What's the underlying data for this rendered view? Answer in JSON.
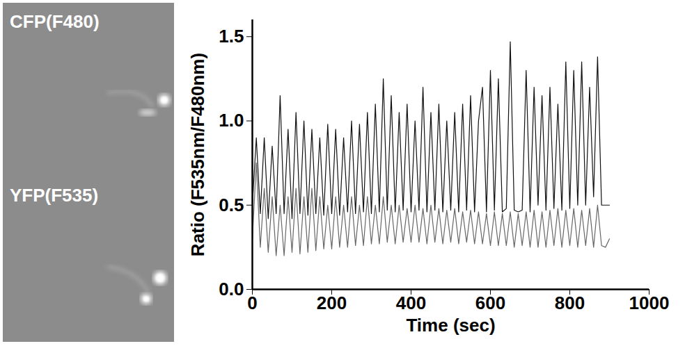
{
  "image_labels": [
    "CFP(F480)",
    "YFP(F535)"
  ],
  "chart_data": {
    "type": "line",
    "x_label": "Time (sec)",
    "y_label": "Ratio (F535nm/F480nm)",
    "xlim": [
      0,
      1000
    ],
    "xticks": [
      0,
      200,
      400,
      600,
      800,
      1000
    ],
    "ylim": [
      0,
      1.6
    ],
    "yticks": [
      {
        "value": 0,
        "label": "0.0"
      },
      {
        "value": 0.5,
        "label": "0.5"
      },
      {
        "value": 1,
        "label": "1.0"
      },
      {
        "value": 1.5,
        "label": "1.5"
      }
    ],
    "grid": false,
    "x": [
      0,
      10,
      20,
      30,
      40,
      50,
      60,
      70,
      80,
      90,
      100,
      110,
      120,
      130,
      140,
      150,
      160,
      170,
      180,
      190,
      200,
      210,
      220,
      230,
      240,
      250,
      260,
      270,
      280,
      290,
      300,
      310,
      320,
      330,
      340,
      350,
      360,
      370,
      380,
      390,
      400,
      410,
      420,
      430,
      440,
      450,
      460,
      470,
      480,
      490,
      500,
      510,
      520,
      530,
      540,
      550,
      560,
      570,
      580,
      590,
      600,
      610,
      620,
      630,
      640,
      650,
      660,
      670,
      680,
      690,
      700,
      710,
      720,
      730,
      740,
      750,
      760,
      770,
      780,
      790,
      800,
      810,
      820,
      830,
      840,
      850,
      860,
      870,
      880,
      890,
      900
    ],
    "series": [
      {
        "color": "#666666",
        "values": [
          0.3,
          0.75,
          0.25,
          0.6,
          0.22,
          0.55,
          0.2,
          0.5,
          0.2,
          0.55,
          0.22,
          0.6,
          0.21,
          0.55,
          0.22,
          0.6,
          0.23,
          0.55,
          0.24,
          0.5,
          0.24,
          0.55,
          0.25,
          0.5,
          0.25,
          0.55,
          0.26,
          0.5,
          0.26,
          0.55,
          0.27,
          0.5,
          0.27,
          0.55,
          0.28,
          0.5,
          0.27,
          0.5,
          0.28,
          0.48,
          0.28,
          0.5,
          0.28,
          0.48,
          0.27,
          0.5,
          0.28,
          0.48,
          0.27,
          0.47,
          0.28,
          0.48,
          0.27,
          0.46,
          0.28,
          0.47,
          0.27,
          0.46,
          0.27,
          0.45,
          0.26,
          0.46,
          0.26,
          0.45,
          0.26,
          0.46,
          0.25,
          0.45,
          0.26,
          0.46,
          0.25,
          0.47,
          0.25,
          0.46,
          0.25,
          0.47,
          0.26,
          0.48,
          0.25,
          0.47,
          0.26,
          0.48,
          0.25,
          0.47,
          0.26,
          0.48,
          0.25,
          0.5,
          0.26,
          0.25,
          0.3
        ]
      },
      {
        "color": "#111111",
        "values": [
          0.5,
          0.9,
          0.45,
          0.9,
          0.42,
          0.85,
          0.45,
          1.15,
          0.45,
          0.95,
          0.42,
          1.05,
          0.45,
          1.0,
          0.44,
          0.95,
          0.45,
          0.9,
          0.44,
          0.98,
          0.45,
          0.95,
          0.44,
          0.9,
          0.46,
          1.0,
          0.45,
          0.98,
          0.46,
          1.05,
          0.45,
          1.1,
          0.46,
          1.25,
          0.47,
          1.15,
          0.46,
          1.05,
          0.47,
          1.1,
          0.46,
          1.0,
          0.47,
          1.2,
          0.46,
          1.05,
          0.47,
          1.1,
          0.46,
          1.0,
          0.47,
          1.05,
          0.46,
          1.1,
          0.47,
          1.15,
          0.46,
          1.0,
          1.2,
          0.46,
          1.3,
          0.47,
          1.25,
          0.46,
          0.48,
          1.47,
          0.47,
          0.46,
          0.47,
          1.3,
          0.46,
          1.2,
          0.5,
          1.15,
          0.47,
          1.2,
          0.48,
          1.1,
          0.47,
          1.35,
          0.48,
          1.3,
          0.5,
          1.35,
          0.5,
          1.2,
          0.55,
          1.38,
          0.5,
          0.5,
          0.5
        ]
      }
    ]
  }
}
